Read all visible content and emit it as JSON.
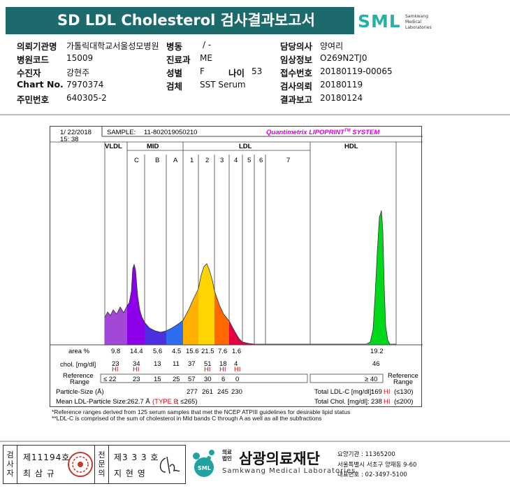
{
  "header": {
    "title": "SD LDL Cholesterol 검사결과보고서",
    "logo_text": "SML",
    "logo_sub": [
      "Samkwang",
      "Medical",
      "Laboratories"
    ]
  },
  "patient_info": [
    {
      "label": "의뢰기관명",
      "value": "가톨릭대학교서울성모병원"
    },
    {
      "label": "병동",
      "value": "/ -"
    },
    {
      "label": "담당의사",
      "value": "양여리"
    },
    {
      "label": "병원코드",
      "value": "15009"
    },
    {
      "label": "진료과",
      "value": "ME"
    },
    {
      "label": "임상정보",
      "value": "O269N2TJ0"
    },
    {
      "label": "수진자",
      "value": "강현주"
    },
    {
      "label": "성별",
      "value": "F"
    },
    {
      "label": "나이",
      "value": "53"
    },
    {
      "label": "접수번호",
      "value": "20180119-00065"
    },
    {
      "label": "Chart No.",
      "value": "7970374"
    },
    {
      "label": "검체",
      "value": "SST Serum"
    },
    {
      "label": "검사의뢰",
      "value": "20180119"
    },
    {
      "label": "주민번호",
      "value": "640305-2"
    },
    {
      "label": "결과보고",
      "value": "20180124"
    }
  ],
  "report": {
    "date": "1/ 22/2018",
    "time": "15: 38",
    "sample_label": "SAMPLE:",
    "sample_id": "11-802019050210",
    "system_name": "Quantimetrix LIPOPRINT",
    "system_tm": "TM",
    "system_suffix": " SYSTEM",
    "band_groups": [
      "VLDL",
      "MID",
      "LDL",
      "HDL"
    ],
    "bands": [
      "C",
      "B",
      "A",
      "1",
      "2",
      "3",
      "4",
      "5",
      "6",
      "7"
    ],
    "area_label": "area %",
    "area_values": [
      "9.8",
      "14.4",
      "5.6",
      "4.5",
      "15.6",
      "21.5",
      "7.6",
      "1.6",
      "19.2"
    ],
    "chol_label": "chol. [mg/dl]",
    "chol_values": [
      "23",
      "34",
      "13",
      "11",
      "37",
      "51",
      "18",
      "4",
      "46"
    ],
    "hi_flags": [
      "HI",
      "HI",
      "HI",
      "HI",
      "HI"
    ],
    "ref_label_1": "Reference",
    "ref_label_2": "Range",
    "ref_values": [
      "≤ 22",
      "23",
      "15",
      "25",
      "57",
      "30",
      "6",
      "0",
      "≥ 40"
    ],
    "particle_label": "Particle-Size (Å)",
    "particle_values": [
      "277",
      "261",
      "245",
      "230"
    ],
    "mean_ldl_label": "Mean LDL-Particle Size:",
    "mean_ldl_value": "262.7 Å",
    "mean_ldl_type": "(TYPE B",
    "mean_ldl_ref": "; ≤265)",
    "total_ldl_label": "Total LDL-C [mg/dl]:",
    "total_ldl_value": "169",
    "total_ldl_flag": "HI",
    "total_ldl_ref": "(≤130)",
    "total_chol_label": "Total Chol. [mg/dl]:",
    "total_chol_value": "238",
    "total_chol_flag": "HI",
    "total_chol_ref": "(≤200)"
  },
  "footnotes": [
    "*Reference ranges derived from 125 serum samples that met the NCEP ATPIII guidelines for desirable lipid status",
    "**LDL-C is comprised of the sum of cholesterol in Mid bands C through A as well as all the subfractions"
  ],
  "signatures": {
    "test_label": [
      "검",
      "사",
      "자"
    ],
    "test_license": "제11194호",
    "test_name": "최 삼 규",
    "spec_label": [
      "전",
      "문",
      "의"
    ],
    "spec_license": "제3 3 3 호",
    "spec_name": "지 현 영"
  },
  "lab": {
    "kind": [
      "의료",
      "법인"
    ],
    "name": "삼광의료재단",
    "english": "Samkwang Medical Laboratories",
    "info": [
      "요양기관 : 11365200",
      "서울특별시 서초구 양재동 9-60",
      "대표번호 : 02-3497-5100"
    ]
  },
  "colors": {
    "title_bar": "#1d6a6c",
    "logo": "#22b3a6",
    "vldl": "#a347d8",
    "mid_c": "#8b00e8",
    "mid_b": "#4b2fe0",
    "mid_a": "#2f6df0",
    "ldl_1": "#ffb000",
    "ldl_2": "#ffd400",
    "ldl_3": "#ff6a00",
    "ldl_4": "#e60041",
    "hdl": "#00d81c",
    "hi": "#e00000",
    "system": "#d900d9"
  }
}
